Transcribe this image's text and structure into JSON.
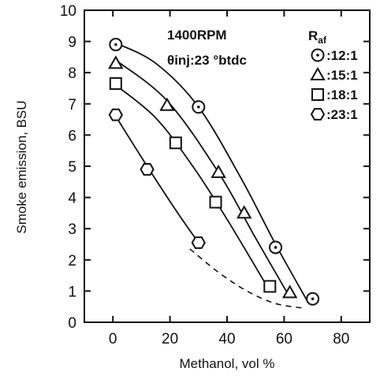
{
  "chart_data": {
    "type": "line",
    "xlabel": "Methanol, vol %",
    "ylabel": "Smoke emission, BSU",
    "xlim": [
      -10,
      90
    ],
    "ylim": [
      0,
      10
    ],
    "x_ticks": [
      0,
      20,
      40,
      60,
      80
    ],
    "y_ticks": [
      0,
      1,
      2,
      3,
      4,
      5,
      6,
      7,
      8,
      9,
      10
    ],
    "grid": false,
    "annotations": [
      "1400RPM",
      "θinj:23  °btdc"
    ],
    "legend_title": "Raf",
    "legend_title_main": "R",
    "legend_title_sub": "af",
    "legend_position": "top-right",
    "series": [
      {
        "name": ":12:1",
        "marker": "circle-dot",
        "x": [
          1,
          30,
          57,
          70
        ],
        "y": [
          8.9,
          6.9,
          2.4,
          0.75
        ],
        "curve_x": [
          1,
          15,
          30,
          45,
          57,
          68
        ],
        "curve_y": [
          8.95,
          8.3,
          6.9,
          4.6,
          2.5,
          0.7
        ]
      },
      {
        "name": ":15:1",
        "marker": "triangle",
        "x": [
          1,
          19,
          37,
          46,
          62
        ],
        "y": [
          8.3,
          6.95,
          4.8,
          3.5,
          0.95
        ],
        "curve_x": [
          1,
          19,
          37,
          50,
          62
        ],
        "curve_y": [
          8.4,
          7.1,
          4.8,
          2.7,
          0.8
        ]
      },
      {
        "name": ":18:1",
        "marker": "square",
        "x": [
          1,
          22,
          36,
          55
        ],
        "y": [
          7.65,
          5.75,
          3.85,
          1.15
        ],
        "curve_x": [
          1,
          15,
          28,
          40,
          55
        ],
        "curve_y": [
          7.6,
          6.55,
          5.0,
          3.3,
          1.0
        ]
      },
      {
        "name": ":23:1",
        "marker": "hexagon",
        "x": [
          1,
          12,
          30
        ],
        "y": [
          6.65,
          4.9,
          2.55
        ],
        "curve_x": [
          1,
          12,
          22,
          30
        ],
        "curve_y": [
          6.6,
          5.0,
          3.6,
          2.55
        ]
      }
    ],
    "limit_line": {
      "style": "dashed",
      "x": [
        27,
        37,
        47,
        57,
        67
      ],
      "y": [
        2.35,
        1.6,
        1.0,
        0.6,
        0.45
      ]
    }
  }
}
